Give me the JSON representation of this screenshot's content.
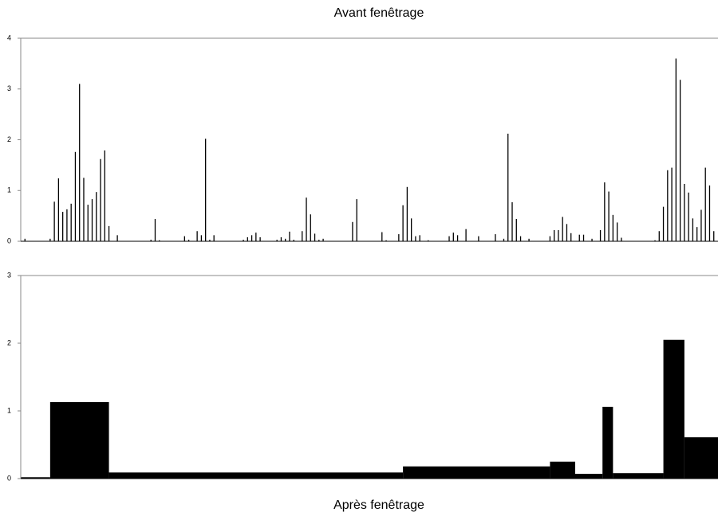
{
  "chart_data": [
    {
      "type": "stem",
      "title": "Avant fenêtrage",
      "color": "#000000",
      "x": [
        1,
        7,
        8,
        9,
        10,
        11,
        12,
        13,
        14,
        15,
        16,
        17,
        18,
        19,
        20,
        21,
        23,
        31,
        32,
        33,
        39,
        40,
        42,
        43,
        44,
        45,
        46,
        53,
        54,
        55,
        56,
        57,
        61,
        62,
        63,
        64,
        65,
        67,
        68,
        69,
        70,
        71,
        72,
        79,
        80,
        86,
        87,
        90,
        91,
        92,
        93,
        94,
        95,
        97,
        102,
        103,
        104,
        106,
        109,
        113,
        115,
        116,
        117,
        118,
        119,
        121,
        126,
        127,
        128,
        129,
        130,
        131,
        133,
        134,
        136,
        138,
        139,
        140,
        141,
        142,
        143,
        151,
        152,
        153,
        154,
        155,
        156,
        157,
        158,
        159,
        160,
        161,
        162,
        163,
        164,
        165
      ],
      "values": [
        0.05,
        0.05,
        0.78,
        1.24,
        0.58,
        0.63,
        0.74,
        1.76,
        3.1,
        1.25,
        0.72,
        0.83,
        0.97,
        1.62,
        1.79,
        0.3,
        0.12,
        0.03,
        0.44,
        0.02,
        0.1,
        0.03,
        0.2,
        0.12,
        2.02,
        0.03,
        0.12,
        0.03,
        0.08,
        0.12,
        0.17,
        0.08,
        0.03,
        0.08,
        0.05,
        0.19,
        0.03,
        0.2,
        0.86,
        0.53,
        0.15,
        0.03,
        0.05,
        0.38,
        0.83,
        0.18,
        0.02,
        0.14,
        0.71,
        1.07,
        0.45,
        0.1,
        0.12,
        0.02,
        0.1,
        0.17,
        0.12,
        0.24,
        0.1,
        0.14,
        0.05,
        2.12,
        0.77,
        0.44,
        0.1,
        0.05,
        0.1,
        0.22,
        0.22,
        0.48,
        0.34,
        0.16,
        0.13,
        0.13,
        0.05,
        0.22,
        1.16,
        0.98,
        0.52,
        0.37,
        0.07,
        0.02,
        0.2,
        0.68,
        1.4,
        1.45,
        3.6,
        3.18,
        1.13,
        0.96,
        0.45,
        0.28,
        0.62,
        1.45,
        1.1,
        0.2
      ],
      "xlim": [
        0,
        166
      ],
      "ylim": [
        0,
        4
      ],
      "yticks": [
        0,
        1,
        2,
        3,
        4
      ]
    },
    {
      "type": "histogram",
      "title": "Après fenêtrage",
      "color": "#000000",
      "bins": [
        0,
        7,
        21,
        91,
        126,
        132,
        138.5,
        141,
        153,
        158,
        166
      ],
      "values": [
        0.02,
        1.13,
        0.09,
        0.18,
        0.25,
        0.07,
        1.06,
        0.08,
        2.05,
        0.61
      ],
      "xlim": [
        0,
        166
      ],
      "ylim": [
        0,
        3
      ],
      "yticks": [
        0,
        1,
        2,
        3
      ]
    }
  ]
}
